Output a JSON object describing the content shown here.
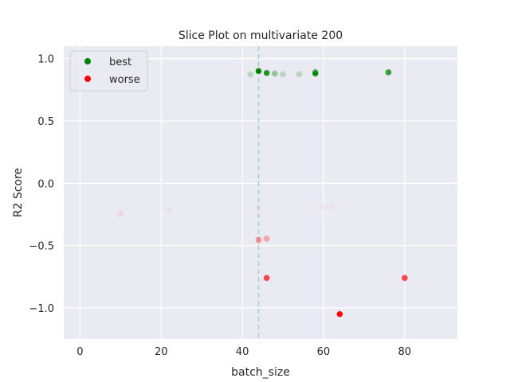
{
  "chart_data": {
    "type": "scatter",
    "title": "Slice Plot on multivariate 200",
    "xlabel": "batch_size",
    "ylabel": "R2 Score",
    "xlim": [
      -4,
      93
    ],
    "ylim": [
      -1.25,
      1.1
    ],
    "xticks": [
      0,
      20,
      40,
      60,
      80
    ],
    "yticks": [
      -1.0,
      -0.5,
      0.0,
      0.5,
      1.0
    ],
    "xtick_labels": [
      "0",
      "20",
      "40",
      "60",
      "80"
    ],
    "ytick_labels": [
      "−1.0",
      "−0.5",
      "0.0",
      "0.5",
      "1.0"
    ],
    "grid": true,
    "legend_position": "top-left",
    "best_x_line": 44,
    "colors": {
      "background": "#eaeaf2",
      "grid": "#ffffff",
      "best": "#008000",
      "worse": "#ff0000",
      "vline": "#b0c4c4"
    },
    "series": [
      {
        "name": "best",
        "color": "#008000",
        "points": [
          {
            "x": 44,
            "y": 0.9,
            "alpha": 1.0
          },
          {
            "x": 46,
            "y": 0.885,
            "alpha": 0.85
          },
          {
            "x": 58,
            "y": 0.89,
            "alpha": 0.85
          },
          {
            "x": 58,
            "y": 0.88,
            "alpha": 0.75
          },
          {
            "x": 76,
            "y": 0.89,
            "alpha": 0.75
          },
          {
            "x": 48,
            "y": 0.88,
            "alpha": 0.35
          },
          {
            "x": 42,
            "y": 0.875,
            "alpha": 0.2
          },
          {
            "x": 50,
            "y": 0.875,
            "alpha": 0.2
          },
          {
            "x": 54,
            "y": 0.875,
            "alpha": 0.2
          }
        ]
      },
      {
        "name": "worse",
        "color": "#ff0000",
        "points": [
          {
            "x": 64,
            "y": -1.05,
            "alpha": 1.0
          },
          {
            "x": 46,
            "y": -0.76,
            "alpha": 0.7
          },
          {
            "x": 80,
            "y": -0.76,
            "alpha": 0.7
          },
          {
            "x": 44,
            "y": -0.455,
            "alpha": 0.35
          },
          {
            "x": 46,
            "y": -0.445,
            "alpha": 0.3
          },
          {
            "x": 10,
            "y": -0.245,
            "alpha": 0.08
          },
          {
            "x": 22,
            "y": -0.215,
            "alpha": 0.05
          },
          {
            "x": 44,
            "y": -0.2,
            "alpha": 0.03
          },
          {
            "x": 60,
            "y": -0.195,
            "alpha": 0.04
          },
          {
            "x": 62,
            "y": -0.195,
            "alpha": 0.03
          }
        ]
      }
    ]
  }
}
